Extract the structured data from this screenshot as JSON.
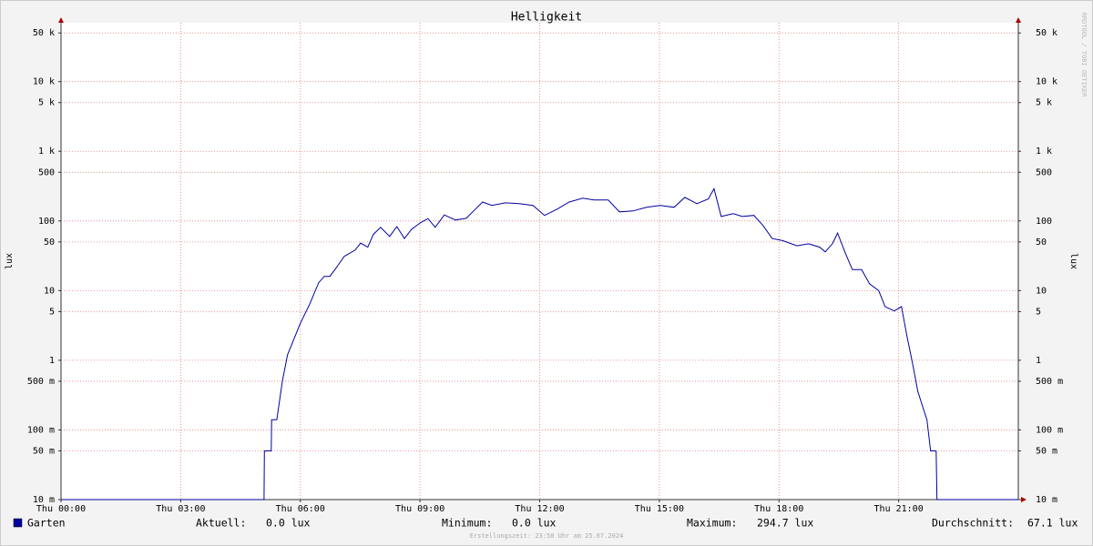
{
  "chart_data": {
    "type": "line",
    "title": "Helligkeit",
    "y_label": "lux",
    "watermark": "RRDTOOL / TOBI OETIKER",
    "log_scale": true,
    "grid": true,
    "xlim": [
      0,
      24
    ],
    "xticks": [
      {
        "value": 0,
        "label": "Thu 00:00"
      },
      {
        "value": 3,
        "label": "Thu 03:00"
      },
      {
        "value": 6,
        "label": "Thu 06:00"
      },
      {
        "value": 9,
        "label": "Thu 09:00"
      },
      {
        "value": 12,
        "label": "Thu 12:00"
      },
      {
        "value": 15,
        "label": "Thu 15:00"
      },
      {
        "value": 18,
        "label": "Thu 18:00"
      },
      {
        "value": 21,
        "label": "Thu 21:00"
      }
    ],
    "ylim": [
      0.01,
      70000
    ],
    "yticks": [
      {
        "value": 0.01,
        "label": "10 m"
      },
      {
        "value": 0.05,
        "label": "50 m"
      },
      {
        "value": 0.1,
        "label": "100 m"
      },
      {
        "value": 0.5,
        "label": "500 m"
      },
      1,
      5,
      10,
      50,
      100,
      500,
      {
        "value": 1000,
        "label": "1 k"
      },
      {
        "value": 5000,
        "label": "5 k"
      },
      {
        "value": 10000,
        "label": "10 k"
      },
      {
        "value": 50000,
        "label": "50 k"
      }
    ],
    "x": [
      0,
      5.09,
      5.1,
      5.27,
      5.28,
      5.41,
      5.55,
      5.68,
      5.82,
      6.0,
      6.23,
      6.46,
      6.6,
      6.74,
      6.92,
      7.1,
      7.37,
      7.51,
      7.69,
      7.83,
      8.01,
      8.24,
      8.42,
      8.61,
      8.79,
      9.02,
      9.2,
      9.38,
      9.61,
      9.89,
      10.16,
      10.39,
      10.57,
      10.8,
      11.14,
      11.48,
      11.83,
      12.12,
      12.44,
      12.74,
      13.08,
      13.36,
      13.72,
      14.0,
      14.34,
      14.68,
      15.02,
      15.37,
      15.64,
      15.94,
      16.23,
      16.37,
      16.55,
      16.85,
      17.08,
      17.37,
      17.6,
      17.83,
      18.1,
      18.45,
      18.74,
      19.02,
      19.16,
      19.34,
      19.47,
      19.66,
      19.84,
      20.07,
      20.27,
      20.5,
      20.66,
      20.89,
      21.07,
      21.21,
      21.35,
      21.48,
      21.62,
      21.71,
      21.8,
      21.94,
      21.96,
      24
    ],
    "series": [
      {
        "name": "Garten",
        "color": "#0000a0",
        "values": [
          0,
          0,
          0.05,
          0.05,
          0.14,
          0.14,
          0.5,
          1.2,
          1.9,
          3.4,
          6.3,
          13,
          16,
          16,
          22,
          31,
          38,
          48,
          42,
          64,
          81,
          60,
          83,
          56,
          76,
          95,
          108,
          81,
          122,
          103,
          109,
          148,
          187,
          167,
          182,
          177,
          167,
          120,
          148,
          187,
          212,
          200,
          200,
          135,
          139,
          157,
          167,
          157,
          218,
          177,
          207,
          290,
          116,
          127,
          116,
          120,
          86,
          56,
          52,
          44,
          47,
          42,
          36,
          47,
          67,
          35,
          20,
          20,
          12.5,
          10,
          5.9,
          5.1,
          5.9,
          2.2,
          0.89,
          0.36,
          0.2,
          0.14,
          0.05,
          0.05,
          0,
          0
        ]
      }
    ],
    "legend_stats": [
      {
        "label": "Aktuell:",
        "value": "0.0 lux"
      },
      {
        "label": "Minimum:",
        "value": "0.0 lux"
      },
      {
        "label": "Maximum:",
        "value": "294.7 lux"
      },
      {
        "label": "Durchschnitt:",
        "value": "67.1 lux"
      }
    ],
    "footer": "Erstellungszeit: 23:58 Uhr am 25.07.2024"
  }
}
